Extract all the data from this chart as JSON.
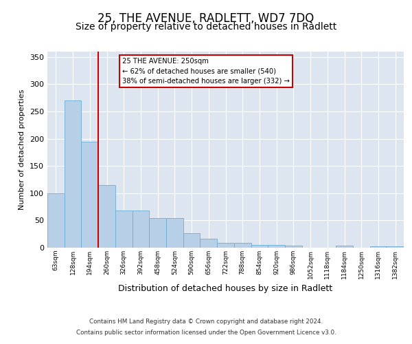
{
  "title_line1": "25, THE AVENUE, RADLETT, WD7 7DQ",
  "title_line2": "Size of property relative to detached houses in Radlett",
  "xlabel": "Distribution of detached houses by size in Radlett",
  "ylabel": "Number of detached properties",
  "categories": [
    "63sqm",
    "128sqm",
    "194sqm",
    "260sqm",
    "326sqm",
    "392sqm",
    "458sqm",
    "524sqm",
    "590sqm",
    "656sqm",
    "722sqm",
    "788sqm",
    "854sqm",
    "920sqm",
    "986sqm",
    "1052sqm",
    "1118sqm",
    "1184sqm",
    "1250sqm",
    "1316sqm",
    "1382sqm"
  ],
  "values": [
    100,
    270,
    195,
    115,
    68,
    68,
    54,
    54,
    27,
    16,
    9,
    9,
    5,
    5,
    4,
    0,
    0,
    4,
    0,
    2,
    2
  ],
  "bar_color": "#b8cfe8",
  "bar_edge_color": "#6baed6",
  "highlight_color": "#cc0000",
  "annotation_text_line1": "25 THE AVENUE: 250sqm",
  "annotation_text_line2": "← 62% of detached houses are smaller (540)",
  "annotation_text_line3": "38% of semi-detached houses are larger (332) →",
  "annotation_box_color": "#ffffff",
  "annotation_box_edge_color": "#cc0000",
  "ylim": [
    0,
    360
  ],
  "yticks": [
    0,
    50,
    100,
    150,
    200,
    250,
    300,
    350
  ],
  "background_color": "#dde6f0",
  "footer_line1": "Contains HM Land Registry data © Crown copyright and database right 2024.",
  "footer_line2": "Contains public sector information licensed under the Open Government Licence v3.0.",
  "title_fontsize": 12,
  "subtitle_fontsize": 10
}
